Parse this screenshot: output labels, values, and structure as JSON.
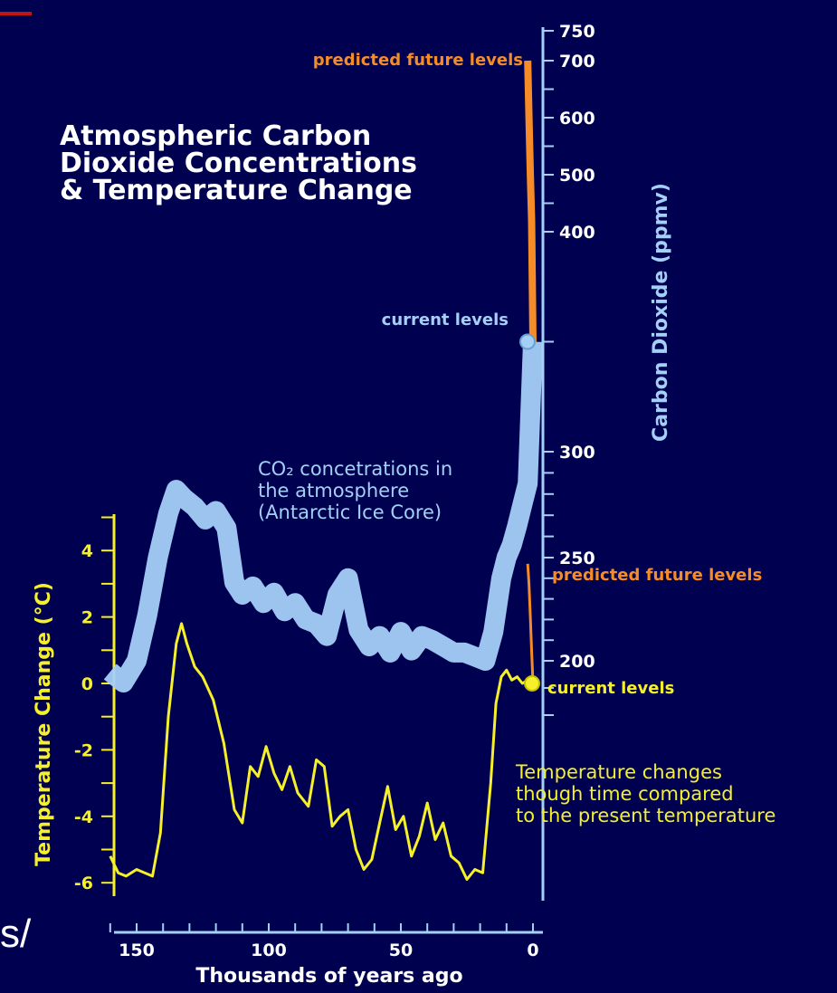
{
  "colors": {
    "background": "#000050",
    "co2": "#a4cff7",
    "temperature": "#f5f02a",
    "future": "#f58c28",
    "white": "#ffffff"
  },
  "slide_fragment": "s/",
  "chart_data": {
    "type": "line",
    "title": "Atmospheric Carbon Dioxide Concentrations & Temperature Change",
    "title_lines": [
      "Atmospheric Carbon",
      "Dioxide Concentrations",
      "& Temperature Change"
    ],
    "xlabel": "Thousands of years ago",
    "x_ticks": [
      150,
      100,
      50,
      0
    ],
    "xlim": [
      160,
      0
    ],
    "left_axis": {
      "label": "Temperature Change (°C)",
      "ticks": [
        4,
        2,
        0,
        -2,
        -4,
        -6
      ],
      "ylim": [
        -6.5,
        5
      ]
    },
    "right_axis": {
      "label": "Carbon Dioxide (ppmv)",
      "ticks": [
        200,
        250,
        300,
        400,
        500,
        600,
        700,
        750
      ],
      "ylim": [
        180,
        750
      ]
    },
    "series": [
      {
        "name": "CO2 concetrations in the atmosphere (Antarctic Ice Core)",
        "axis": "right",
        "x": [
          160,
          155,
          150,
          146,
          142,
          138,
          135,
          132,
          128,
          124,
          120,
          116,
          113,
          110,
          106,
          102,
          98,
          94,
          90,
          86,
          82,
          78,
          74,
          70,
          66,
          62,
          58,
          54,
          50,
          46,
          42,
          38,
          34,
          30,
          26,
          22,
          18,
          15,
          12,
          10,
          8,
          6,
          4,
          2,
          0
        ],
        "y": [
          196,
          192,
          200,
          222,
          250,
          271,
          282,
          278,
          274,
          268,
          272,
          264,
          238,
          232,
          236,
          228,
          233,
          224,
          228,
          220,
          218,
          212,
          232,
          240,
          215,
          207,
          212,
          204,
          214,
          205,
          212,
          210,
          207,
          204,
          204,
          202,
          200,
          214,
          240,
          250,
          256,
          265,
          275,
          285,
          350
        ]
      },
      {
        "name": "predicted future levels",
        "axis": "right",
        "x": [
          0,
          0.5,
          1,
          1.5,
          2
        ],
        "y": [
          350,
          420,
          500,
          600,
          700
        ]
      },
      {
        "name": "Temperature changes though time compared to the present temperature",
        "axis": "left",
        "x": [
          160,
          157,
          154,
          150,
          147,
          144,
          141,
          138,
          135,
          133,
          131,
          128,
          125,
          121,
          117,
          113,
          110,
          107,
          104,
          101,
          98,
          95,
          92,
          89,
          85,
          82,
          79,
          76,
          73,
          70,
          67,
          64,
          61,
          58,
          55,
          52,
          49,
          46,
          43,
          40,
          37,
          34,
          31,
          28,
          25,
          22,
          19,
          16,
          14,
          12,
          10,
          8,
          6,
          4,
          2,
          0
        ],
        "y": [
          -5.2,
          -5.7,
          -5.8,
          -5.6,
          -5.7,
          -5.8,
          -4.5,
          -1.0,
          1.2,
          1.8,
          1.2,
          0.5,
          0.2,
          -0.5,
          -1.8,
          -3.8,
          -4.2,
          -2.5,
          -2.8,
          -1.9,
          -2.7,
          -3.2,
          -2.5,
          -3.3,
          -3.7,
          -2.3,
          -2.5,
          -4.3,
          -4.0,
          -3.8,
          -5.0,
          -5.6,
          -5.3,
          -4.2,
          -3.1,
          -4.4,
          -4.0,
          -5.2,
          -4.6,
          -3.6,
          -4.7,
          -4.2,
          -5.2,
          -5.4,
          -5.9,
          -5.6,
          -5.7,
          -3.0,
          -0.6,
          0.2,
          0.4,
          0.1,
          0.2,
          0.0,
          0.1,
          0.0
        ]
      },
      {
        "name": "predicted future levels",
        "axis": "left",
        "x": [
          0,
          0.5,
          1,
          1.5,
          2
        ],
        "y": [
          0.0,
          1.0,
          2.0,
          3.0,
          3.6
        ]
      }
    ],
    "annotations": {
      "co2_label_lines": [
        "CO₂ concetrations in",
        "the atmosphere",
        "(Antarctic Ice Core)"
      ],
      "temp_label_lines": [
        "Temperature changes",
        "though time compared",
        "to the present temperature"
      ],
      "future_co2": "predicted future levels",
      "current_co2": "current levels",
      "future_temp": "predicted future levels",
      "current_temp": "current levels"
    },
    "legend": "none",
    "grid": false
  }
}
